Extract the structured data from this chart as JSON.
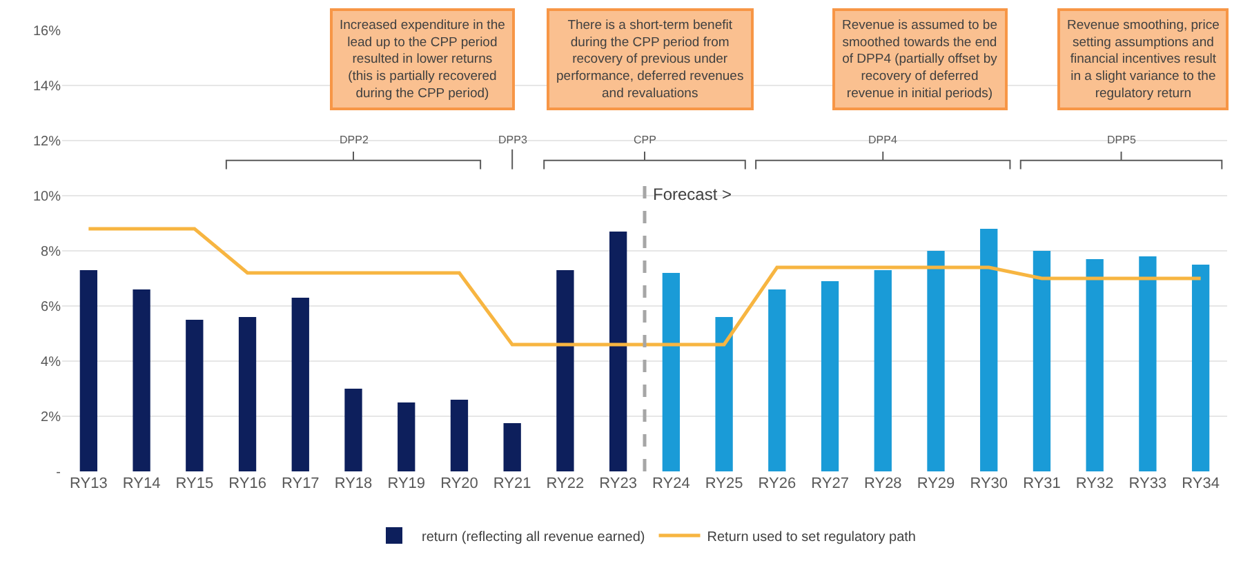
{
  "chart_data": {
    "type": "bar",
    "categories": [
      "RY13",
      "RY14",
      "RY15",
      "RY16",
      "RY17",
      "RY18",
      "RY19",
      "RY20",
      "RY21",
      "RY22",
      "RY23",
      "RY24",
      "RY25",
      "RY26",
      "RY27",
      "RY28",
      "RY29",
      "RY30",
      "RY31",
      "RY32",
      "RY33",
      "RY34"
    ],
    "series": [
      {
        "name": "return (reflecting all revenue earned)",
        "color": "#0d1f5c",
        "colors": [
          "#0d1f5c",
          "#0d1f5c",
          "#0d1f5c",
          "#0d1f5c",
          "#0d1f5c",
          "#0d1f5c",
          "#0d1f5c",
          "#0d1f5c",
          "#0d1f5c",
          "#0d1f5c",
          "#0d1f5c",
          "#1a9bd7",
          "#1a9bd7",
          "#1a9bd7",
          "#1a9bd7",
          "#1a9bd7",
          "#1a9bd7",
          "#1a9bd7",
          "#1a9bd7",
          "#1a9bd7",
          "#1a9bd7",
          "#1a9bd7"
        ],
        "values": [
          7.3,
          6.6,
          5.5,
          5.6,
          6.3,
          3.0,
          2.5,
          2.6,
          1.75,
          7.3,
          8.7,
          7.2,
          5.6,
          6.6,
          6.9,
          7.3,
          8.0,
          8.8,
          8.0,
          7.7,
          7.8,
          7.5
        ]
      },
      {
        "name": "Return used to set regulatory path",
        "type": "line",
        "color": "#f7b541",
        "values": [
          8.8,
          8.8,
          8.8,
          7.2,
          7.2,
          7.2,
          7.2,
          7.2,
          4.6,
          4.6,
          4.6,
          4.6,
          4.6,
          7.4,
          7.4,
          7.4,
          7.4,
          7.4,
          7.0,
          7.0,
          7.0,
          7.0
        ]
      }
    ],
    "ylim": [
      0,
      16
    ],
    "yticks": [
      {
        "value": 0,
        "label": "-"
      },
      {
        "value": 2,
        "label": "2%"
      },
      {
        "value": 4,
        "label": "4%"
      },
      {
        "value": 6,
        "label": "6%"
      },
      {
        "value": 8,
        "label": "8%"
      },
      {
        "value": 10,
        "label": "10%"
      },
      {
        "value": 12,
        "label": "12%"
      },
      {
        "value": 14,
        "label": "14%"
      },
      {
        "value": 16,
        "label": "16%"
      }
    ],
    "grid": "y",
    "legend": "bottom",
    "marker": "none",
    "ref_lines": [
      {
        "axis": "x",
        "value": "RY24",
        "label": "Forecast >",
        "color": "#a6a6a6",
        "line_style": "dashed"
      }
    ],
    "annotations": [
      "DPP2",
      "DPP3",
      "CPP",
      "DPP4",
      "DPP5",
      "Increased expenditure in the\nlead up to the CPP period\nresulted in lower returns\n(this is partially recovered\nduring the CPP period)",
      "There is a short-term benefit\nduring the CPP period from\nrecovery of previous under\nperformance, deferred revenues\nand revaluations",
      "Revenue is assumed to be\nsmoothed towards the end\nof DPP4 (partially offset by\nrecovery of deferred\nrevenue in initial periods)",
      "Revenue smoothing, price\nsetting assumptions and\nfinancial incentives result\nin a slight variance to the\nregulatory return"
    ]
  }
}
